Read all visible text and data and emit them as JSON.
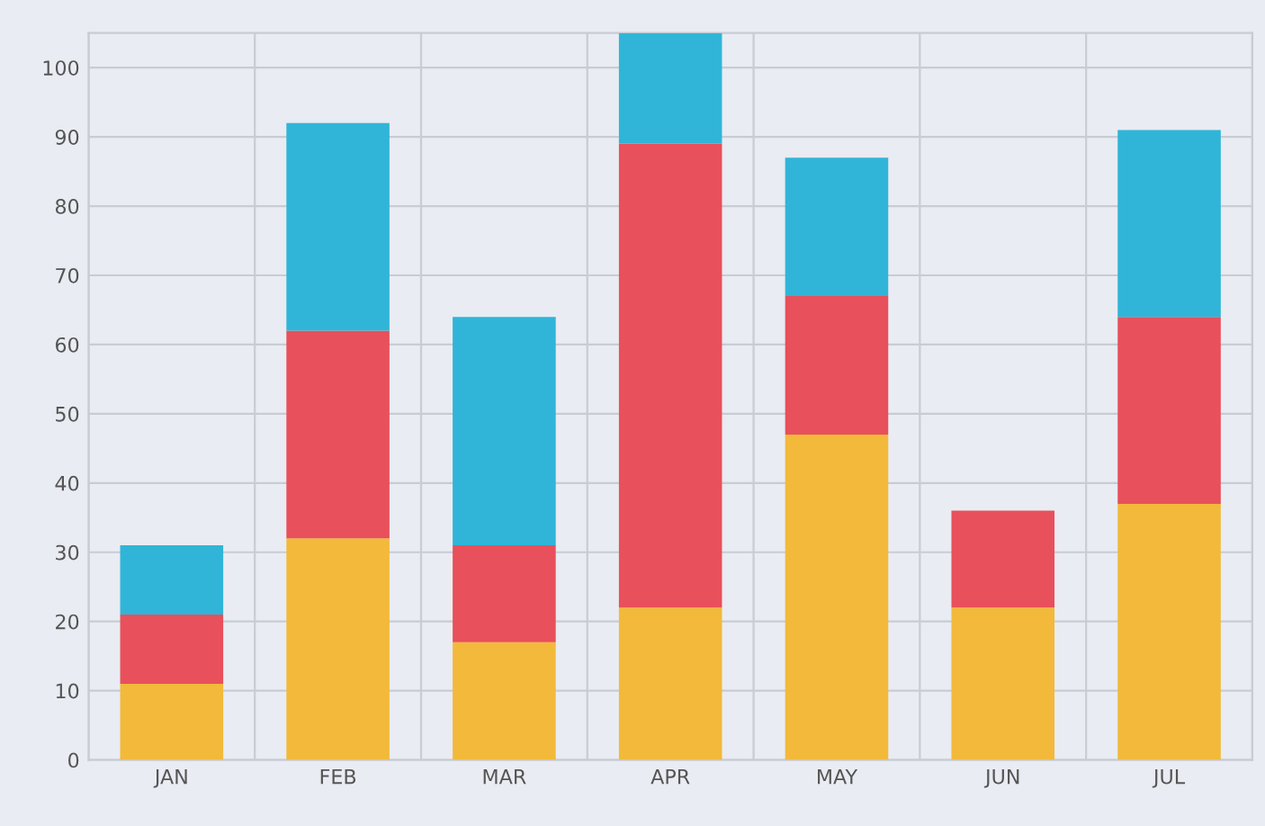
{
  "chart_data": {
    "type": "bar",
    "stacked": true,
    "categories": [
      "JAN",
      "FEB",
      "MAR",
      "APR",
      "MAY",
      "JUN",
      "JUL"
    ],
    "series": [
      {
        "color": "#f2b93b",
        "values": [
          11,
          32,
          17,
          22,
          47,
          22,
          37
        ]
      },
      {
        "color": "#e8505b",
        "values": [
          10,
          30,
          14,
          67,
          20,
          14,
          27
        ]
      },
      {
        "color": "#30b5d8",
        "values": [
          10,
          30,
          33,
          16,
          20,
          0,
          27
        ]
      }
    ],
    "ylim": [
      0,
      105
    ],
    "yticks": [
      0,
      10,
      20,
      30,
      40,
      50,
      60,
      70,
      80,
      90,
      100
    ],
    "grid": true,
    "legend": false
  }
}
